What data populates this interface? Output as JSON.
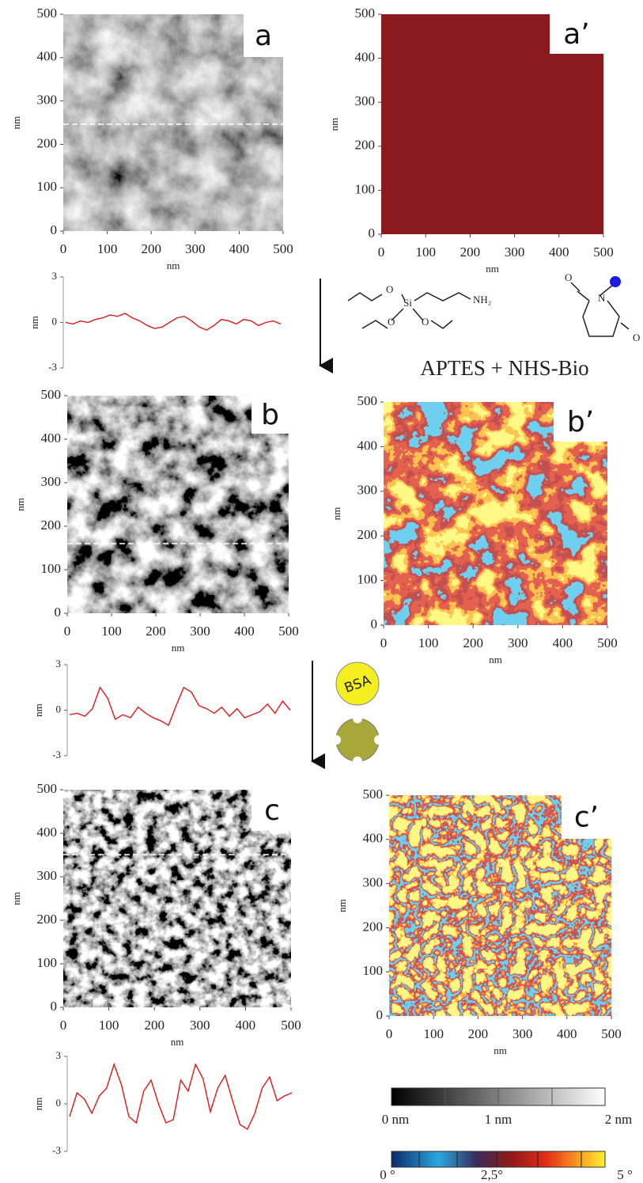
{
  "panels": [
    {
      "label": "a",
      "xlabel": "nm",
      "ylabel": "nm",
      "xlim": [
        0,
        500
      ],
      "ylim": [
        0,
        500
      ],
      "xticks": [
        0,
        100,
        200,
        300,
        400,
        500
      ],
      "yticks": [
        0,
        100,
        200,
        300,
        400,
        500
      ]
    },
    {
      "label": "a’",
      "xlabel": "nm",
      "ylabel": "nm",
      "xlim": [
        0,
        500
      ],
      "ylim": [
        0,
        500
      ],
      "xticks": [
        0,
        100,
        200,
        300,
        400,
        500
      ],
      "yticks": [
        0,
        100,
        200,
        300,
        400,
        500
      ]
    },
    {
      "label": "b",
      "xlabel": "nm",
      "ylabel": "nm",
      "xlim": [
        0,
        500
      ],
      "ylim": [
        0,
        500
      ],
      "xticks": [
        0,
        100,
        200,
        300,
        400,
        500
      ],
      "yticks": [
        0,
        100,
        200,
        300,
        400,
        500
      ]
    },
    {
      "label": "b’",
      "xlabel": "nm",
      "ylabel": "nm",
      "xlim": [
        0,
        500
      ],
      "ylim": [
        0,
        500
      ],
      "xticks": [
        0,
        100,
        200,
        300,
        400,
        500
      ],
      "yticks": [
        0,
        100,
        200,
        300,
        400,
        500
      ]
    },
    {
      "label": "c",
      "xlabel": "nm",
      "ylabel": "nm",
      "xlim": [
        0,
        500
      ],
      "ylim": [
        0,
        500
      ],
      "xticks": [
        0,
        100,
        200,
        300,
        400,
        500
      ],
      "yticks": [
        0,
        100,
        200,
        300,
        400,
        500
      ]
    },
    {
      "label": "c’",
      "xlabel": "nm",
      "ylabel": "nm",
      "xlim": [
        0,
        500
      ],
      "ylim": [
        0,
        500
      ],
      "xticks": [
        0,
        100,
        200,
        300,
        400,
        500
      ],
      "yticks": [
        0,
        100,
        200,
        300,
        400,
        500
      ]
    }
  ],
  "profiles": [
    {
      "ylabel": "nm",
      "ylim": [
        -3,
        3
      ],
      "yticks": [
        3,
        0,
        -3
      ],
      "color": "#e01818",
      "values": [
        0,
        -0.1,
        0.1,
        0,
        0.2,
        0.3,
        0.5,
        0.4,
        0.6,
        0.3,
        0.1,
        -0.2,
        -0.4,
        -0.3,
        0,
        0.3,
        0.4,
        0.1,
        -0.3,
        -0.5,
        -0.2,
        0.2,
        0.1,
        -0.1,
        0.2,
        0.1,
        -0.2,
        0,
        0.1,
        -0.1
      ]
    },
    {
      "ylabel": "nm",
      "ylim": [
        -3,
        3
      ],
      "yticks": [
        3,
        0,
        -3
      ],
      "color": "#e01818",
      "values": [
        -0.3,
        -0.2,
        -0.4,
        0.1,
        1.5,
        0.8,
        -0.6,
        -0.3,
        -0.5,
        0.2,
        -0.2,
        -0.5,
        -0.7,
        -1,
        0.3,
        1.5,
        1.2,
        0.3,
        0.1,
        -0.2,
        0.2,
        -0.4,
        0.1,
        -0.5,
        -0.3,
        -0.1,
        0.4,
        -0.2,
        0.6,
        0
      ]
    },
    {
      "ylabel": "nm",
      "ylim": [
        -3,
        3
      ],
      "yticks": [
        3,
        0,
        -3
      ],
      "color": "#e01818",
      "values": [
        -0.8,
        0.7,
        0.3,
        -0.6,
        0.5,
        1,
        2.5,
        1.2,
        -0.8,
        -1.2,
        0.8,
        1.5,
        0,
        -1.2,
        -1,
        1.5,
        0.8,
        2.5,
        1.6,
        -0.5,
        1,
        1.8,
        0.2,
        -1.3,
        -1.6,
        -0.6,
        1,
        1.7,
        0.2,
        0.5,
        0.7
      ]
    }
  ],
  "chemistry": {
    "atoms": [
      "O",
      "Si",
      "O",
      "O",
      "NH₂",
      "O",
      "N",
      "O"
    ],
    "step": "APTES + NHS-Bio",
    "protein": "BSA"
  },
  "scale_bars": [
    {
      "labels": [
        "0 nm",
        "1  nm",
        "2 nm"
      ]
    },
    {
      "labels": [
        "0 °",
        "2,5°",
        "5 °"
      ]
    }
  ]
}
